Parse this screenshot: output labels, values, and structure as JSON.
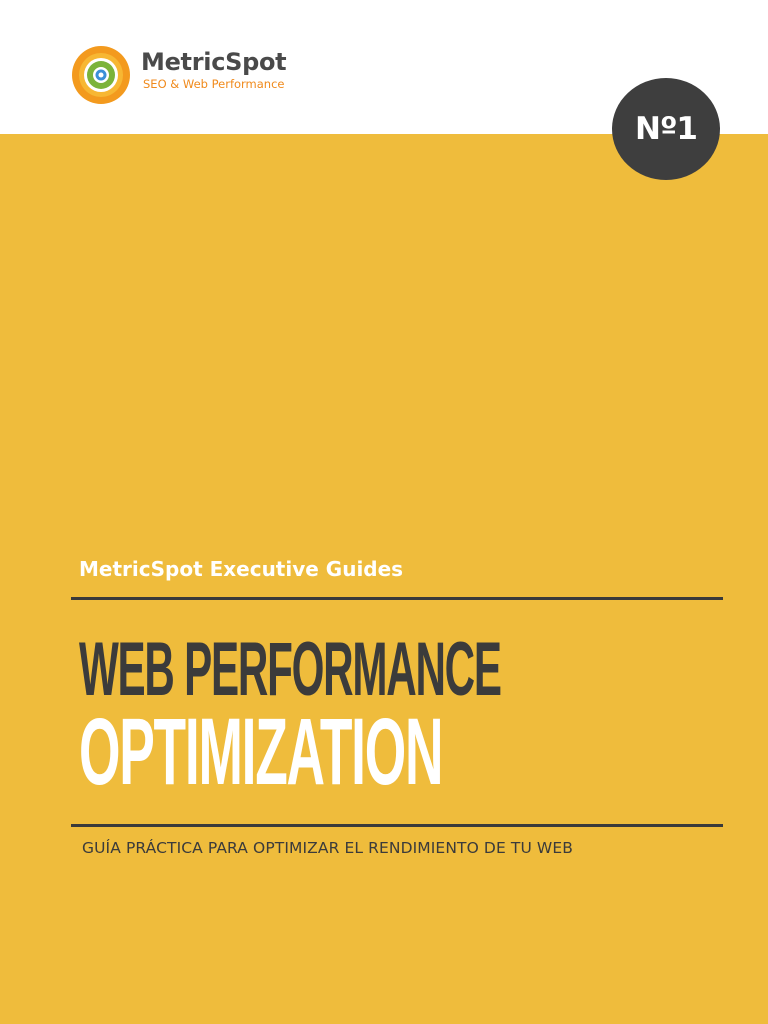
{
  "header": {
    "brand_name": "MetricSpot",
    "brand_tagline": "SEO & Web Performance"
  },
  "badge": {
    "text": "Nº1"
  },
  "cover": {
    "series": "MetricSpot Executive Guides",
    "title_line1": "WEB PERFORMANCE",
    "title_line2": "OPTIMIZATION",
    "subtitle": "GUÍA PRÁCTICA PARA OPTIMIZAR EL RENDIMIENTO DE TU WEB"
  },
  "colors": {
    "background": "#efbc3c",
    "header_background": "#ffffff",
    "dark": "#3b3b3b",
    "brand_orange": "#f08a1c",
    "text_light": "#ffffff"
  },
  "icons": {
    "logo": "metricspot-logo-icon"
  }
}
